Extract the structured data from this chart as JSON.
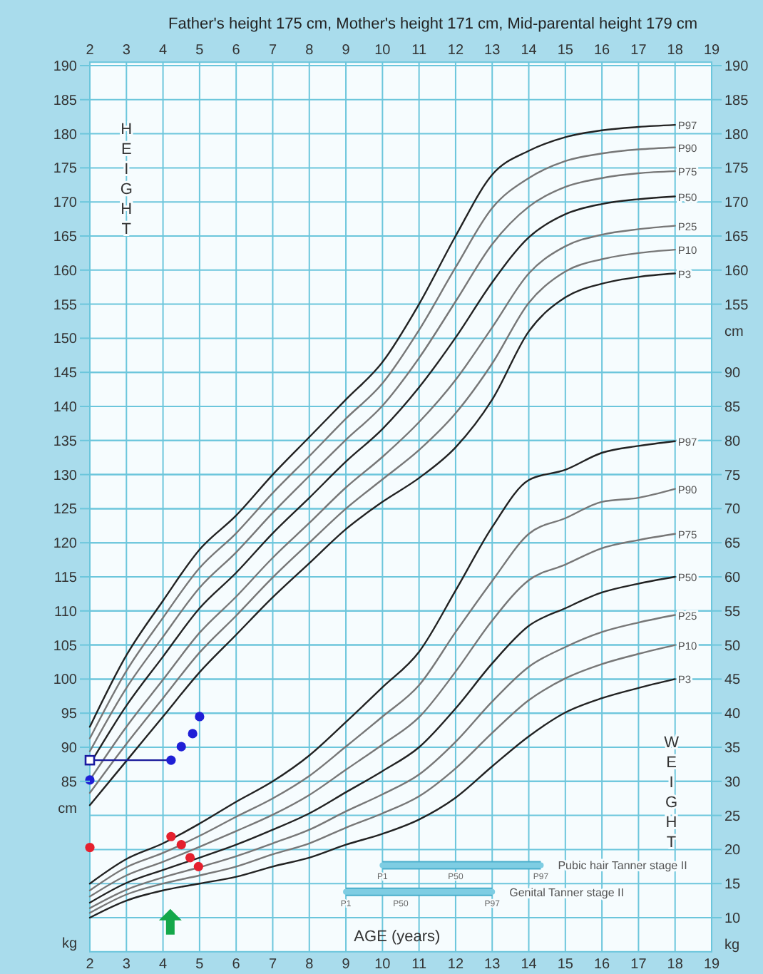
{
  "chart_data": {
    "type": "line",
    "title": "Father's height 175 cm, Mother's height 171 cm, Mid-parental height 179 cm",
    "xlabel": "AGE (years)",
    "ylabel": "cm",
    "y2label": "kg",
    "y3label": "cm",
    "xlim": [
      2,
      19
    ],
    "xticks": [
      2,
      3,
      4,
      5,
      6,
      7,
      8,
      9,
      10,
      11,
      12,
      13,
      14,
      15,
      16,
      17,
      18,
      19
    ],
    "x2lim": [
      2,
      19
    ],
    "x2ticks": [
      2,
      3,
      4,
      5,
      6,
      7,
      8,
      9,
      10,
      11,
      12,
      13,
      14,
      15,
      16,
      17,
      18,
      19
    ],
    "ylim": [
      60,
      190.5
    ],
    "yticks": [
      85,
      90,
      95,
      100,
      105,
      110,
      115,
      120,
      125,
      130,
      135,
      140,
      145,
      150,
      155,
      160,
      165,
      170,
      175,
      180,
      185,
      190
    ],
    "y2lim": [
      5,
      135.5
    ],
    "y2ticks": [
      10,
      15,
      20,
      25,
      30,
      35,
      40,
      45,
      50,
      55,
      60,
      65,
      70,
      75,
      80,
      85,
      90
    ],
    "y3lim": [
      60,
      190.5
    ],
    "y3ticks": [
      155,
      160,
      165,
      170,
      175,
      180,
      185,
      190
    ],
    "grid": true,
    "x": [
      2,
      3,
      4,
      5,
      6,
      7,
      8,
      9,
      10,
      11,
      12,
      13,
      14,
      15,
      16,
      17,
      18
    ],
    "series": [
      {
        "name": "P97",
        "color": "#222222",
        "marker": "none",
        "values": [
          93,
          103.5,
          111.5,
          119,
          124,
          130,
          135.5,
          141,
          146.5,
          155,
          165,
          174,
          177.5,
          179.5,
          180.5,
          181,
          181.3
        ]
      },
      {
        "name": "P90",
        "color": "#777777",
        "marker": "none",
        "values": [
          91.3,
          101.2,
          109,
          116.3,
          121.4,
          127.3,
          132.7,
          138.2,
          143.4,
          151.2,
          160.4,
          169.1,
          173.5,
          176,
          177.1,
          177.7,
          178
        ]
      },
      {
        "name": "P75",
        "color": "#777777",
        "marker": "none",
        "values": [
          89.4,
          98.7,
          106.2,
          113.4,
          118.6,
          124.4,
          129.8,
          135.1,
          140.1,
          147.1,
          155.4,
          163.8,
          169.3,
          172.2,
          173.5,
          174.2,
          174.5
        ]
      },
      {
        "name": "P50",
        "color": "#222222",
        "marker": "none",
        "values": [
          87.5,
          96.1,
          103.3,
          110.4,
          115.6,
          121.4,
          126.6,
          131.9,
          136.7,
          142.8,
          150.1,
          158.2,
          164.8,
          168.2,
          169.7,
          170.4,
          170.8
        ]
      },
      {
        "name": "P25",
        "color": "#777777",
        "marker": "none",
        "values": [
          85.2,
          93,
          99.9,
          106.8,
          112.1,
          117.8,
          122.9,
          128.1,
          132.6,
          137.7,
          143.9,
          151.6,
          159.5,
          163.5,
          165.2,
          166,
          166.5
        ]
      },
      {
        "name": "P10",
        "color": "#777777",
        "marker": "none",
        "values": [
          83.3,
          90.5,
          97.2,
          103.9,
          109.3,
          114.9,
          120,
          125,
          129.3,
          133.6,
          139,
          146.3,
          155.2,
          159.8,
          161.6,
          162.5,
          163
        ]
      },
      {
        "name": "P3",
        "color": "#222222",
        "marker": "none",
        "values": [
          81.5,
          88,
          94.5,
          101,
          106.5,
          112,
          117,
          122,
          126,
          129.5,
          134,
          141,
          151,
          156,
          158,
          159,
          159.5
        ]
      },
      {
        "name": "P97",
        "color": "#222222",
        "marker": "none",
        "axis": "y2",
        "values": [
          15,
          18.6,
          20.9,
          23.8,
          27,
          30,
          33.8,
          38.7,
          43.8,
          49,
          58,
          67.3,
          74.2,
          75.7,
          78.2,
          79.2,
          79.9
        ]
      },
      {
        "name": "P90",
        "color": "#777777",
        "marker": "none",
        "axis": "y2",
        "values": [
          14,
          17.4,
          19.5,
          22,
          24.8,
          27.5,
          30.8,
          35.1,
          39.5,
          44.1,
          51.9,
          59.4,
          66.3,
          68.6,
          71,
          71.6,
          72.9
        ]
      },
      {
        "name": "P75",
        "color": "#777777",
        "marker": "none",
        "axis": "y2",
        "values": [
          13.1,
          16.2,
          18.2,
          20.4,
          22.7,
          25.1,
          28,
          31.7,
          35.4,
          39.4,
          46.1,
          53.6,
          59.5,
          61.8,
          64.2,
          65.4,
          66.3
        ]
      },
      {
        "name": "P50",
        "color": "#222222",
        "marker": "none",
        "axis": "y2",
        "values": [
          12.2,
          15.1,
          17,
          18.8,
          20.7,
          22.9,
          25.3,
          28.4,
          31.5,
          35,
          40.7,
          47.3,
          52.8,
          55.4,
          57.7,
          59,
          60
        ]
      },
      {
        "name": "P25",
        "color": "#777777",
        "marker": "none",
        "axis": "y2",
        "values": [
          11.4,
          14.1,
          15.9,
          17.4,
          19,
          20.9,
          22.9,
          25.6,
          28.1,
          31,
          35.8,
          41.7,
          46.8,
          49.7,
          51.9,
          53.3,
          54.4
        ]
      },
      {
        "name": "P10",
        "color": "#777777",
        "marker": "none",
        "axis": "y2",
        "values": [
          10.7,
          13.4,
          15,
          16.2,
          17.5,
          19.3,
          20.9,
          23.2,
          25.3,
          27.8,
          31.9,
          37.1,
          41.9,
          45.1,
          47.2,
          48.7,
          50
        ]
      },
      {
        "name": "P3",
        "color": "#222222",
        "marker": "none",
        "axis": "y2",
        "values": [
          10,
          12.5,
          14,
          15,
          16,
          17.5,
          18.8,
          20.7,
          22.3,
          24.4,
          27.6,
          32.2,
          36.6,
          40.1,
          42.2,
          43.7,
          45
        ]
      },
      {
        "name": "Pubic hair Tanner stage II",
        "color": "#7ecde3",
        "marker": "none",
        "axis": "y2",
        "x": [
          10,
          14.33
        ],
        "values": [
          17.7,
          17.7
        ]
      },
      {
        "name": "Genital Tanner stage II",
        "color": "#7ecde3",
        "marker": "none",
        "axis": "y2",
        "x": [
          9,
          13
        ],
        "values": [
          13.8,
          13.8
        ]
      },
      {
        "type": "line",
        "color": "#1a1a9a",
        "marker": "none",
        "x": [
          2,
          4.22
        ],
        "values": [
          88.1,
          88.1
        ]
      },
      {
        "type": "scatter",
        "color": "#1a1aa0",
        "marker": "square",
        "x": [
          2
        ],
        "values": [
          88.1
        ]
      },
      {
        "type": "scatter",
        "color": "#1f1fd6",
        "marker": "circle",
        "x": [
          2,
          4.22,
          4.5,
          4.81,
          5
        ],
        "values": [
          85.2,
          88.1,
          90.1,
          92,
          94.5
        ]
      },
      {
        "type": "scatter",
        "color": "#e5202e",
        "marker": "circle",
        "axis": "y2",
        "x": [
          2,
          4.22,
          4.5,
          4.74,
          4.97
        ],
        "values": [
          20.3,
          21.9,
          20.7,
          18.8,
          17.5
        ]
      }
    ],
    "annotations": [
      "HEIGHT",
      "WEIGHT",
      "kg",
      {
        "text": "P1",
        "x": 10,
        "y": 72.7
      },
      {
        "text": "P50",
        "x": 12,
        "y": 72.7
      },
      {
        "text": "P97",
        "x": 14.33,
        "y": 72.7
      },
      {
        "text": "P1",
        "x": 9,
        "y": 68.8
      },
      {
        "text": "P50",
        "x": 10.5,
        "y": 68.8
      },
      {
        "text": "P97",
        "x": 13,
        "y": 68.8
      }
    ]
  }
}
